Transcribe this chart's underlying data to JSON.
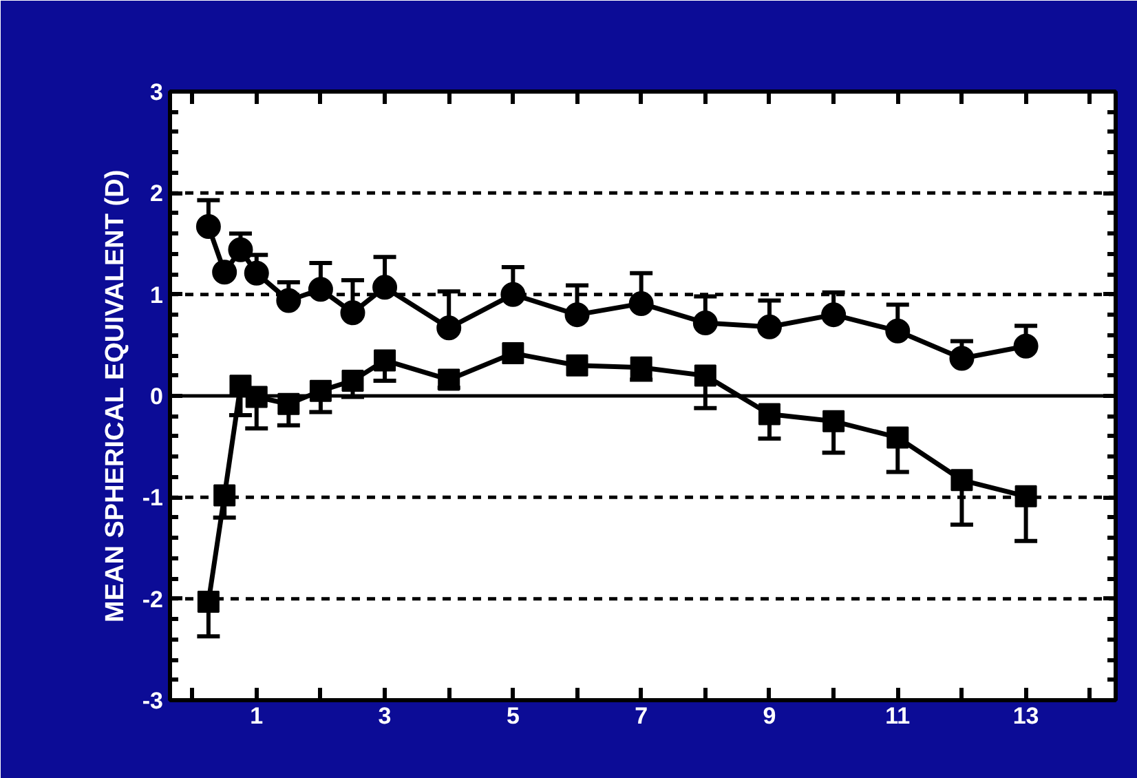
{
  "chart_data": {
    "type": "line",
    "ylabel": "MEAN SPHERICAL EQUIVALENT (D)",
    "xlim": [
      -0.35,
      14.4
    ],
    "ylim": [
      -3,
      3
    ],
    "xticks": [
      {
        "value": 0,
        "label": null
      },
      1,
      {
        "value": 2,
        "label": null
      },
      3,
      {
        "value": 4,
        "label": null
      },
      5,
      {
        "value": 6,
        "label": null
      },
      7,
      {
        "value": 8,
        "label": null
      },
      9,
      {
        "value": 10,
        "label": null
      },
      11,
      {
        "value": 12,
        "label": null
      },
      13,
      {
        "value": 14,
        "label": null
      }
    ],
    "yticks": [
      -3,
      -2,
      -1,
      0,
      1,
      2,
      3
    ],
    "line_style": "solid",
    "ref_lines": [
      {
        "axis": "y",
        "value": 2,
        "line_style": "dashed",
        "color": "#000000"
      },
      {
        "axis": "y",
        "value": 1,
        "line_style": "dashed",
        "color": "#000000"
      },
      {
        "axis": "y",
        "value": 0,
        "line_style": "solid",
        "color": "#000000"
      },
      {
        "axis": "y",
        "value": -1,
        "line_style": "dashed",
        "color": "#000000"
      },
      {
        "axis": "y",
        "value": -2,
        "line_style": "dashed",
        "color": "#000000"
      }
    ],
    "series": [
      {
        "color": "#000000",
        "marker": "circle",
        "x": [
          0.25,
          0.5,
          0.75,
          1,
          1.5,
          2,
          2.5,
          3,
          4,
          5,
          6,
          7,
          8,
          9,
          10,
          11,
          12,
          13
        ],
        "values": [
          1.67,
          1.22,
          1.44,
          1.21,
          0.94,
          1.05,
          0.82,
          1.07,
          0.67,
          1.0,
          0.8,
          0.91,
          0.72,
          0.68,
          0.8,
          0.64,
          0.37,
          0.49
        ],
        "errors": [
          [
            1.67,
            1.93
          ],
          null,
          [
            1.44,
            1.6
          ],
          [
            1.21,
            1.39
          ],
          [
            0.94,
            1.12
          ],
          [
            1.05,
            1.31
          ],
          [
            0.82,
            1.14
          ],
          [
            1.07,
            1.37
          ],
          [
            0.67,
            1.03
          ],
          [
            1.0,
            1.27
          ],
          [
            0.8,
            1.09
          ],
          [
            0.91,
            1.21
          ],
          [
            0.72,
            0.98
          ],
          [
            0.68,
            0.94
          ],
          [
            0.8,
            1.02
          ],
          [
            0.64,
            0.9
          ],
          [
            0.37,
            0.54
          ],
          [
            0.49,
            0.69
          ]
        ]
      },
      {
        "color": "#000000",
        "marker": "square",
        "x": [
          0.25,
          0.5,
          0.75,
          1,
          1.5,
          2,
          2.5,
          3,
          4,
          5,
          6,
          7,
          8,
          9,
          10,
          11,
          12,
          13
        ],
        "values": [
          -2.03,
          -0.98,
          0.1,
          -0.01,
          -0.08,
          0.05,
          0.15,
          0.35,
          0.16,
          0.42,
          0.3,
          0.28,
          0.2,
          -0.18,
          -0.25,
          -0.41,
          -0.83,
          -0.99
        ],
        "errors": [
          [
            -2.37,
            -2.03
          ],
          [
            -1.2,
            -0.98
          ],
          [
            -0.19,
            0.1
          ],
          [
            -0.32,
            -0.01
          ],
          [
            -0.29,
            -0.08
          ],
          [
            -0.16,
            0.05
          ],
          [
            -0.01,
            0.15
          ],
          [
            0.15,
            0.35
          ],
          [
            0.08,
            0.16
          ],
          null,
          null,
          [
            0.16,
            0.28
          ],
          [
            -0.12,
            0.2
          ],
          [
            -0.42,
            -0.18
          ],
          [
            -0.56,
            -0.25
          ],
          [
            -0.75,
            -0.41
          ],
          [
            -1.27,
            -0.83
          ],
          [
            -1.43,
            -0.99
          ]
        ]
      }
    ]
  }
}
